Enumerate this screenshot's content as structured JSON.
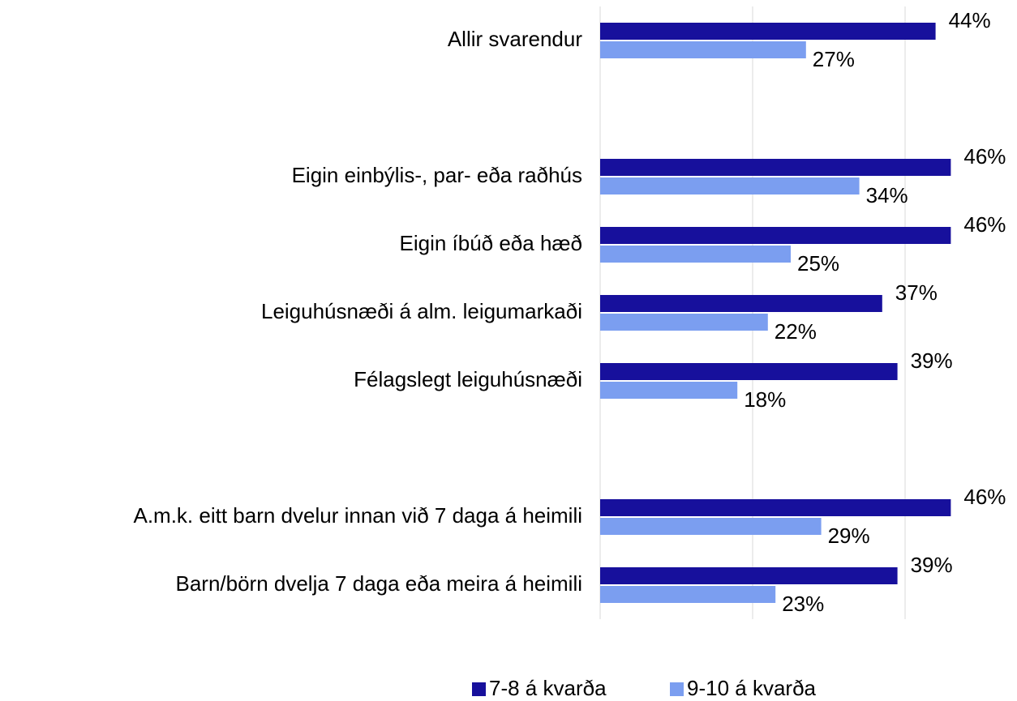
{
  "chart_data": {
    "type": "hbar",
    "categories": [
      "Allir svarendur",
      null,
      "Eigin einbýlis-, par- eða raðhús",
      "Eigin íbúð eða hæð",
      "Leiguhúsnæði á alm. leigumarkaði",
      "Félagslegt leiguhúsnæði",
      null,
      "A.m.k. eitt barn dvelur innan við 7 daga á heimili",
      "Barn/börn dvelja 7 daga eða meira á heimili"
    ],
    "series": [
      {
        "name": "7-8 á kvarða",
        "color": "#17109c",
        "values": [
          44,
          null,
          46,
          46,
          37,
          39,
          null,
          46,
          39
        ],
        "value_labels": [
          "44%",
          null,
          "46%",
          "46%",
          "37%",
          "39%",
          null,
          "46%",
          "39%"
        ]
      },
      {
        "name": "9-10 á kvarða",
        "color": "#7b9ef0",
        "values": [
          27,
          null,
          34,
          25,
          22,
          18,
          null,
          29,
          23
        ],
        "value_labels": [
          "27%",
          null,
          "34%",
          "25%",
          "22%",
          "18%",
          null,
          "29%",
          "23%"
        ]
      }
    ],
    "xlim": [
      0,
      50
    ],
    "xticks": [
      0,
      20,
      40
    ],
    "tick_labels": false,
    "grid": true,
    "legend": "bottom"
  }
}
